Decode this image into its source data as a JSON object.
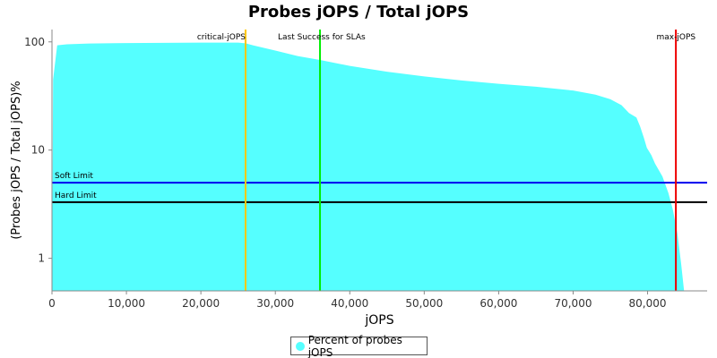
{
  "chart_data": {
    "type": "area",
    "title": "Probes jOPS / Total jOPS",
    "xlabel": "jOPS",
    "ylabel": "(Probes jOPS / Total jOPS)%",
    "x_scale": "linear",
    "y_scale": "log",
    "xlim": [
      0,
      88000
    ],
    "ylim": [
      0.5,
      130
    ],
    "x_ticks": [
      0,
      10000,
      20000,
      30000,
      40000,
      50000,
      60000,
      70000,
      80000
    ],
    "x_tick_labels": [
      "0",
      "10,000",
      "20,000",
      "30,000",
      "40,000",
      "50,000",
      "60,000",
      "70,000",
      "80,000"
    ],
    "y_ticks": [
      1,
      10,
      100
    ],
    "y_tick_labels": [
      "1",
      "10",
      "100"
    ],
    "series": [
      {
        "name": "Percent of probes jOPS",
        "color": "#55ffff",
        "points": [
          [
            0,
            0.5
          ],
          [
            150,
            45
          ],
          [
            700,
            93
          ],
          [
            2000,
            95
          ],
          [
            5000,
            96.5
          ],
          [
            10000,
            97.5
          ],
          [
            15000,
            98
          ],
          [
            20000,
            98.5
          ],
          [
            25000,
            98.5
          ],
          [
            26000,
            97
          ],
          [
            27000,
            93
          ],
          [
            30000,
            83
          ],
          [
            33000,
            74
          ],
          [
            36000,
            68
          ],
          [
            40000,
            60
          ],
          [
            45000,
            53
          ],
          [
            50000,
            48
          ],
          [
            55000,
            44
          ],
          [
            60000,
            41
          ],
          [
            65000,
            38.5
          ],
          [
            70000,
            35.5
          ],
          [
            73000,
            32.5
          ],
          [
            75000,
            29.5
          ],
          [
            76500,
            26
          ],
          [
            77500,
            22
          ],
          [
            78500,
            20
          ],
          [
            79000,
            16.5
          ],
          [
            79500,
            13
          ],
          [
            79900,
            10.5
          ],
          [
            80500,
            9
          ],
          [
            81000,
            7.5
          ],
          [
            82000,
            5.7
          ],
          [
            82800,
            4.0
          ],
          [
            83400,
            2.8
          ],
          [
            84000,
            1.7
          ],
          [
            84500,
            0.9
          ],
          [
            84900,
            0.5
          ],
          [
            88000,
            0.5
          ]
        ]
      }
    ],
    "vertical_markers": [
      {
        "label": "critical-jOPS",
        "x": 26000,
        "color": "#ffc800"
      },
      {
        "label": "Last Success for SLAs",
        "x": 36000,
        "color": "#00ee00"
      },
      {
        "label": "max-jOPS",
        "x": 83800,
        "color": "#ee0000"
      }
    ],
    "horizontal_markers": [
      {
        "label": "Soft Limit",
        "y": 5,
        "color": "#0000ee"
      },
      {
        "label": "Hard Limit",
        "y": 3.3,
        "color": "#000000"
      }
    ],
    "legend": {
      "position": "bottom",
      "entries": [
        "Percent of probes jOPS"
      ]
    },
    "grid": false
  }
}
